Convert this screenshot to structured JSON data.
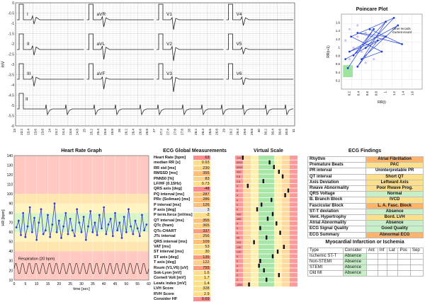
{
  "ecg": {
    "ylabel": "mV",
    "leads_row1": [
      "I",
      "aVR",
      "V1",
      "V4"
    ],
    "leads_row2": [
      "II",
      "aVL",
      "V2",
      "V5"
    ],
    "leads_row3": [
      "III",
      "aVF",
      "V3",
      "V6"
    ],
    "rhythm_lead": "II",
    "y_ticks": [
      "0",
      "-0.5",
      "-1",
      "-1.5",
      "-2",
      "-2.5",
      "-3",
      "-3.5",
      "-4",
      "-4.5",
      "-5",
      "-5.5",
      "-6"
    ],
    "x_ticks": [
      "23",
      "23.2",
      "23.4",
      "23.6",
      "23.8",
      "24",
      "24.2",
      "24.4",
      "24.6",
      "24.8",
      "25",
      "25.2",
      "25.4",
      "25.6",
      "25.8",
      "26",
      "26.2",
      "26.4",
      "26.6",
      "26.8",
      "27",
      "27.2",
      "27.4",
      "27.6",
      "27.8",
      "28",
      "28.2",
      "28.4",
      "28.6",
      "28.8",
      "29",
      "29.2",
      "29.4",
      "29.6",
      "29.8",
      "30",
      "30.2",
      "30.4",
      "30.6",
      "30.8",
      "31"
    ]
  },
  "poincare": {
    "title": "Poincare Plot",
    "xlabel": "RR(i)",
    "ylabel": "RR(i+1)",
    "legend": [
      "Other records",
      "Current record"
    ],
    "x_ticks": [
      "0.2",
      "0.4",
      "0.6",
      "0.8",
      "1",
      "1.2",
      "1.4",
      "1.6"
    ],
    "y_ticks": [
      "1.6",
      "1.4",
      "1.2",
      "1",
      "0.8",
      "0.6",
      "0.4",
      "0.2"
    ],
    "colors": {
      "current": "#1f3fd6",
      "other": "#b9a6e8",
      "zone": "#9ee39e"
    }
  },
  "hr_graph": {
    "title": "Heart Rate Graph",
    "ylabel": "HR [bpm]",
    "xlabel": "time [sec]",
    "respiration_label": "Respiration (20 bpm)",
    "y_ticks": [
      "140",
      "130",
      "120",
      "110",
      "100",
      "90",
      "80",
      "70",
      "60",
      "50",
      "40",
      "30",
      "20",
      "10"
    ],
    "x_ticks": [
      "0",
      "5",
      "10",
      "15",
      "20",
      "25",
      "30",
      "35",
      "40",
      "45",
      "50",
      "55",
      "60"
    ]
  },
  "chart_data": {
    "type": "line",
    "title": "Heart Rate Graph",
    "xlabel": "time [sec]",
    "ylabel": "HR [bpm]",
    "xlim": [
      0,
      60
    ],
    "ylim": [
      10,
      140
    ],
    "series": [
      {
        "name": "",
        "x": [
          1,
          2,
          3,
          4,
          5,
          6,
          7,
          8,
          9,
          10,
          11,
          12,
          13,
          14,
          15,
          16,
          17,
          18,
          19,
          20,
          21,
          22,
          23,
          24,
          25,
          26,
          27,
          28,
          29,
          30,
          31,
          32,
          33,
          34,
          35,
          36,
          37,
          38,
          39,
          40,
          41,
          42,
          43,
          44,
          45,
          46,
          47,
          48,
          49,
          50,
          51,
          52,
          53,
          54,
          55,
          56,
          57,
          58,
          59
        ],
        "values": [
          65,
          72,
          57,
          80,
          55,
          66,
          86,
          60,
          75,
          52,
          70,
          84,
          58,
          62,
          78,
          55,
          68,
          90,
          60,
          72,
          54,
          66,
          80,
          58,
          74,
          62,
          56,
          84,
          70,
          60,
          76,
          52,
          66,
          82,
          60,
          70,
          57,
          78,
          64,
          86,
          58,
          68,
          74,
          56,
          80,
          62,
          70,
          54,
          76,
          60,
          84,
          66,
          58,
          72,
          64,
          56,
          78,
          62,
          68
        ]
      }
    ]
  },
  "global": {
    "title": "ECG Global Measurements",
    "rows": [
      {
        "label": "Heart Rate [bpm]",
        "value": "63"
      },
      {
        "label": "median RR [s]",
        "value": "0.93"
      },
      {
        "label": "RR std [ms]",
        "value": "230"
      },
      {
        "label": "RMSSD [ms]",
        "value": "355"
      },
      {
        "label": "PNN50 [%]",
        "value": "83"
      },
      {
        "label": "LF/HF (0.15Hz)",
        "value": "0.73"
      },
      {
        "label": "QRS axis [deg]",
        "value": "-48"
      },
      {
        "label": "PQ interval [ms]",
        "value": "287"
      },
      {
        "label": "PRc (Soliman) [ms]",
        "value": "286"
      },
      {
        "label": "P interval [ms]",
        "value": "126"
      },
      {
        "label": "P axis [deg]",
        "value": "3"
      },
      {
        "label": "P term.force [mVms]",
        "value": "-2"
      },
      {
        "label": "QT interval [ms]",
        "value": "355"
      },
      {
        "label": "QTc (fram)",
        "value": "365"
      },
      {
        "label": "QTc-CHART",
        "value": "337"
      },
      {
        "label": "JTc interval",
        "value": "256"
      },
      {
        "label": "QRS interval [ms]",
        "value": "109"
      },
      {
        "label": "VAT [ms]",
        "value": "53"
      },
      {
        "label": "ST interval [ms]",
        "value": "30"
      },
      {
        "label": "ST axis [deg]",
        "value": "135"
      },
      {
        "label": "T axis [deg]",
        "value": "122"
      },
      {
        "label": "Rsum (V1,V6) [uV]",
        "value": "755"
      },
      {
        "label": "Sok-Lyon [mV]",
        "value": "1.6"
      },
      {
        "label": "Cornell Volt [mV]",
        "value": "1.7"
      },
      {
        "label": "Lewis index [mV]",
        "value": "1.4"
      },
      {
        "label": "LVH Score",
        "value": "328"
      },
      {
        "label": "RVH Score",
        "value": "2.9"
      },
      {
        "label": "Consider HF",
        "value": "0.69"
      }
    ],
    "value_colors": [
      "#ff8c8c",
      "#ffe08a",
      "#ffd28a",
      "#ffc07a",
      "#ffd28a",
      "#ffe08a",
      "#ff8c8c",
      "#ffc07a",
      "#ffc07a",
      "#ffc07a",
      "#e8e8e8",
      "#ffe08a",
      "#ffc07a",
      "#ffd28a",
      "#ff9c7c",
      "#ffd28a",
      "#ffc07a",
      "#ffe08a",
      "#ffe08a",
      "#ff9c7c",
      "#ffd28a",
      "#ff9c7c",
      "#ffe08a",
      "#ffe08a",
      "#ffe08a",
      "#ffe08a",
      "#ffe08a",
      "#ff8c8c"
    ]
  },
  "virtual_scale": {
    "title": "Virtual Scale",
    "tick_labels": [
      "118",
      "6000",
      "6000",
      "450",
      "0.8",
      "0.6",
      "0",
      "0",
      "0",
      "0",
      "0",
      "0",
      "450",
      "450",
      "0",
      "0",
      "0",
      "95",
      "110",
      "130",
      "130",
      "0",
      "0",
      "0",
      "0",
      "0",
      "2",
      "1550"
    ],
    "marker_positions": [
      0.12,
      0.55,
      0.62,
      0.7,
      0.76,
      0.45,
      0.2,
      0.85,
      0.8,
      0.58,
      0.42,
      0.35,
      0.6,
      0.52,
      0.66,
      0.4,
      0.72,
      0.5,
      0.3,
      0.78,
      0.68,
      0.6,
      0.4,
      0.38,
      0.46,
      0.7,
      0.5,
      0.22
    ]
  },
  "findings": {
    "title": "ECG Findings",
    "rows": [
      {
        "label": "Rhythm",
        "value": "Atrial Fibrillation",
        "color": "#ffb36b"
      },
      {
        "label": "Premature Beats",
        "value": "PAC",
        "color": "#ffe08a"
      },
      {
        "label": "PR interval",
        "value": "Uninterpretable PR",
        "color": "#ffffff"
      },
      {
        "label": "QT interval",
        "value": "Short QT",
        "color": "#ffe08a"
      },
      {
        "label": "Axis Deviation",
        "value": "Leftward Axis",
        "color": "#ffe08a"
      },
      {
        "label": "Rwave Abnormality",
        "value": "Poor Rwave Prog.",
        "color": "#ffe08a"
      },
      {
        "label": "QRS Voltage",
        "value": "Normal",
        "color": "#c8f0c8"
      },
      {
        "label": "B. Branch Block",
        "value": "IVCD",
        "color": "#ffe08a"
      },
      {
        "label": "Fascicular Block",
        "value": "L. A. Fasc. Block",
        "color": "#ffb36b"
      },
      {
        "label": "ST-T deviation",
        "value": "Absence",
        "color": "#c8f0c8"
      },
      {
        "label": "Vent. Hypertrophy",
        "value": "Bord. LVH",
        "color": "#ffe08a"
      },
      {
        "label": "Atrial Abnormality",
        "value": "Absence",
        "color": "#c8f0c8"
      },
      {
        "label": "ECG Signal Quality",
        "value": "Good Quality",
        "color": "#c8f0c8"
      },
      {
        "label": "ECG Summary",
        "value": "Abnormal ECG",
        "color": "#ffb36b"
      }
    ]
  },
  "mi": {
    "title": "Myocardial Infarction or Ischemia",
    "headers": [
      "Type",
      "Consider",
      "Ant",
      "Inf",
      "Lat",
      "Pos",
      "Sep"
    ],
    "rows": [
      {
        "type": "Ischemic ST-T",
        "consider": "Absence"
      },
      {
        "type": "Non-STEMI",
        "consider": "Absence"
      },
      {
        "type": "STEMI",
        "consider": "Absence"
      },
      {
        "type": "Old MI",
        "consider": "Absence"
      }
    ],
    "absence_color": "#c8f0c8"
  }
}
